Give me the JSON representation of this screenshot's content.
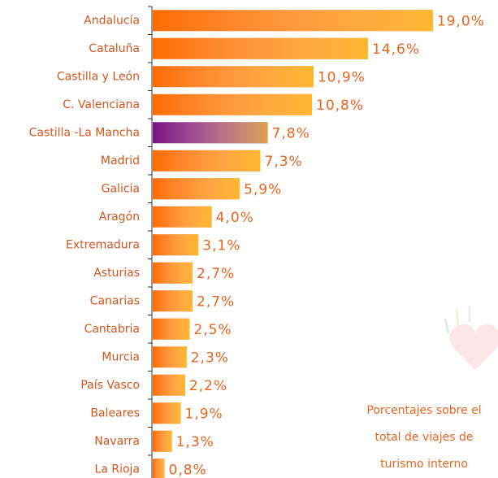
{
  "chart_data": {
    "type": "bar",
    "orientation": "horizontal",
    "categories": [
      "Andalucía",
      "Cataluña",
      "Castilla y León",
      "C. Valenciana",
      "Castilla -La Mancha",
      "Madrid",
      "Galicia",
      "Aragón",
      "Extremadura",
      "Asturias",
      "Canarias",
      "Cantabria",
      "Murcia",
      "País Vasco",
      "Baleares",
      "Navarra",
      "La Rioja"
    ],
    "values": [
      19.0,
      14.6,
      10.9,
      10.8,
      7.8,
      7.3,
      5.9,
      4.0,
      3.1,
      2.7,
      2.7,
      2.5,
      2.3,
      2.2,
      1.9,
      1.3,
      0.8
    ],
    "value_labels": [
      "19,0%",
      "14,6%",
      "10,9%",
      "10,8%",
      "7,8%",
      "7,3%",
      "5,9%",
      "4,0%",
      "3,1%",
      "2,7%",
      "2,7%",
      "2,5%",
      "2,3%",
      "2,2%",
      "1,9%",
      "1,3%",
      "0,8%"
    ],
    "colors": [
      "#ff6a00",
      "#ff6a00",
      "#ff6a00",
      "#ff6a00",
      "#7a1480",
      "#ff6a00",
      "#ff6a00",
      "#ff6a00",
      "#ff6a00",
      "#ff6a00",
      "#ff6a00",
      "#ff6a00",
      "#ff6a00",
      "#ff6a00",
      "#ff6a00",
      "#ff6a00",
      "#ff6a00"
    ],
    "annotation": [
      "Porcentajes sobre el",
      "total de viajes de",
      "turismo interno"
    ]
  }
}
